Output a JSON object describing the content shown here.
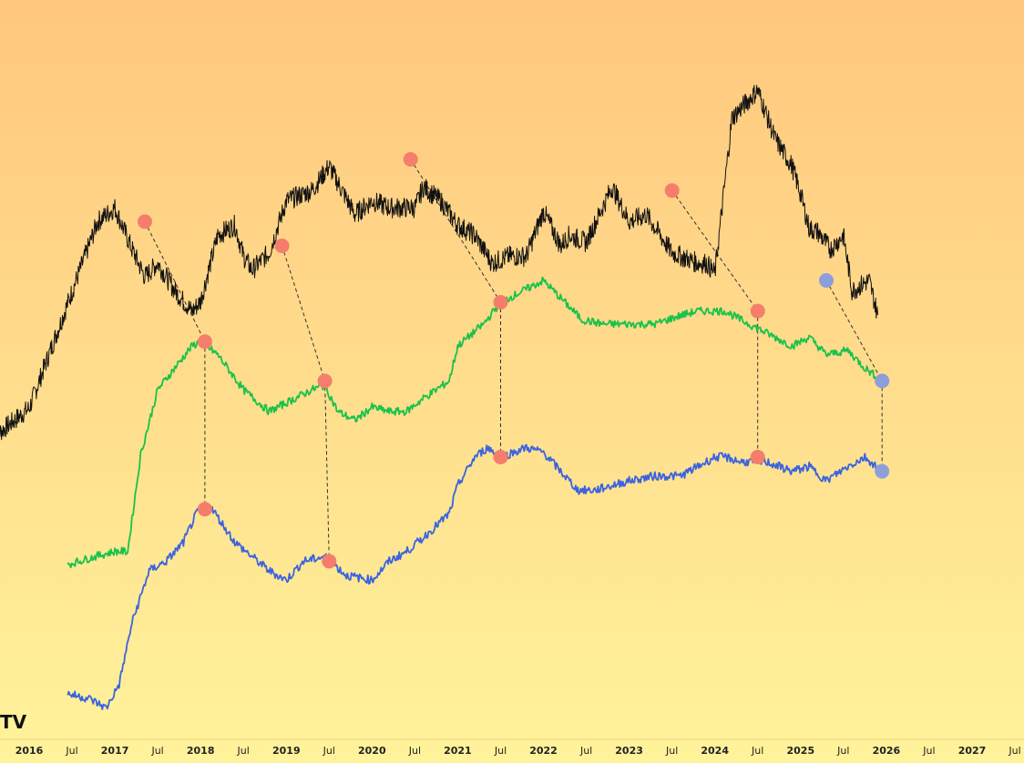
{
  "app": {
    "logo_text": "TV"
  },
  "colors": {
    "background_top": "#FFC77E",
    "background_bottom": "#FFF39B",
    "series_black": "#111111",
    "series_green": "#19C24A",
    "series_blue": "#3B63E0",
    "marker_peak": "#F47E6B",
    "marker_trough": "#8E9EDB",
    "divergence_line": "#333333",
    "axis_text": "#222222"
  },
  "chart_data": {
    "type": "line",
    "title": "",
    "xlabel": "",
    "ylabel": "",
    "grid": false,
    "x_axis_ticks": [
      "2016",
      "Jul",
      "2017",
      "Jul",
      "2018",
      "Jul",
      "2019",
      "Jul",
      "2020",
      "Jul",
      "2021",
      "Jul",
      "2022",
      "Jul",
      "2023",
      "Jul",
      "2024",
      "Jul",
      "2025",
      "Jul",
      "2026",
      "Jul",
      "2027",
      "Jul"
    ],
    "x_range": [
      2016.0,
      2027.5
    ],
    "series": [
      {
        "color": "black",
        "x": [
          2015.6,
          2016.0,
          2016.4,
          2016.8,
          2017.0,
          2017.2,
          2017.35,
          2017.5,
          2017.7,
          2017.9,
          2018.0,
          2018.2,
          2018.4,
          2018.5,
          2018.6,
          2018.8,
          2019.0,
          2019.3,
          2019.5,
          2019.8,
          2020.0,
          2020.2,
          2020.5,
          2020.6,
          2020.8,
          2021.0,
          2021.2,
          2021.4,
          2021.6,
          2021.8,
          2022.0,
          2022.2,
          2022.3,
          2022.5,
          2022.8,
          2023.0,
          2023.2,
          2023.5,
          2023.8,
          2023.9,
          2024.0,
          2024.2,
          2024.5,
          2024.7,
          2024.9,
          2025.0,
          2025.1,
          2025.2,
          2025.35,
          2025.5,
          2025.6,
          2025.8,
          2025.9
        ],
        "y": [
          0.2,
          0.28,
          0.55,
          0.82,
          0.86,
          0.74,
          0.66,
          0.7,
          0.62,
          0.56,
          0.59,
          0.78,
          0.81,
          0.72,
          0.68,
          0.73,
          0.88,
          0.91,
          0.98,
          0.84,
          0.88,
          0.86,
          0.86,
          0.92,
          0.88,
          0.81,
          0.78,
          0.7,
          0.72,
          0.72,
          0.85,
          0.75,
          0.78,
          0.76,
          0.92,
          0.82,
          0.84,
          0.73,
          0.7,
          0.7,
          0.67,
          1.12,
          1.2,
          1.06,
          0.98,
          0.9,
          0.8,
          0.79,
          0.74,
          0.78,
          0.62,
          0.65,
          0.55
        ]
      },
      {
        "color": "green",
        "x": [
          2016.45,
          2016.8,
          2017.0,
          2017.15,
          2017.3,
          2017.5,
          2017.7,
          2017.9,
          2018.0,
          2018.2,
          2018.5,
          2018.8,
          2019.0,
          2019.3,
          2019.45,
          2019.6,
          2019.8,
          2020.0,
          2020.2,
          2020.4,
          2020.6,
          2020.9,
          2021.0,
          2021.3,
          2021.5,
          2021.8,
          2022.0,
          2022.2,
          2022.45,
          2022.7,
          2023.0,
          2023.3,
          2023.6,
          2023.8,
          2024.0,
          2024.12,
          2024.3,
          2024.6,
          2024.9,
          2025.1,
          2025.3,
          2025.55,
          2025.75,
          2025.95
        ],
        "y": [
          0.0,
          0.02,
          0.03,
          0.03,
          0.25,
          0.4,
          0.45,
          0.5,
          0.51,
          0.48,
          0.4,
          0.35,
          0.37,
          0.4,
          0.41,
          0.35,
          0.33,
          0.36,
          0.35,
          0.35,
          0.38,
          0.42,
          0.5,
          0.55,
          0.6,
          0.63,
          0.65,
          0.61,
          0.56,
          0.55,
          0.55,
          0.55,
          0.57,
          0.58,
          0.58,
          0.58,
          0.56,
          0.53,
          0.5,
          0.52,
          0.48,
          0.49,
          0.45,
          0.42
        ]
      },
      {
        "color": "blue",
        "x": [
          2016.45,
          2016.7,
          2016.9,
          2017.05,
          2017.2,
          2017.4,
          2017.6,
          2017.8,
          2017.95,
          2018.1,
          2018.4,
          2018.8,
          2019.0,
          2019.2,
          2019.45,
          2019.7,
          2020.0,
          2020.2,
          2020.4,
          2020.6,
          2020.9,
          2021.0,
          2021.2,
          2021.35,
          2021.5,
          2021.8,
          2022.0,
          2022.2,
          2022.4,
          2022.6,
          2023.0,
          2023.3,
          2023.6,
          2023.8,
          2024.0,
          2024.12,
          2024.3,
          2024.6,
          2024.9,
          2025.1,
          2025.3,
          2025.55,
          2025.75,
          2025.95
        ],
        "y": [
          0.0,
          -0.01,
          -0.03,
          0.02,
          0.15,
          0.26,
          0.28,
          0.32,
          0.38,
          0.4,
          0.32,
          0.26,
          0.24,
          0.28,
          0.29,
          0.25,
          0.24,
          0.28,
          0.3,
          0.33,
          0.38,
          0.44,
          0.5,
          0.52,
          0.5,
          0.52,
          0.51,
          0.47,
          0.43,
          0.43,
          0.45,
          0.46,
          0.46,
          0.48,
          0.5,
          0.5,
          0.49,
          0.49,
          0.47,
          0.48,
          0.45,
          0.48,
          0.5,
          0.47
        ]
      }
    ],
    "markers": [
      {
        "series": "black",
        "kind": "peak",
        "x": 2017.35,
        "y": 0.82
      },
      {
        "series": "black",
        "kind": "peak",
        "x": 2018.95,
        "y": 0.75
      },
      {
        "series": "black",
        "kind": "peak",
        "x": 2020.45,
        "y": 1.0
      },
      {
        "series": "black",
        "kind": "peak",
        "x": 2023.5,
        "y": 0.91
      },
      {
        "series": "black",
        "kind": "trough",
        "x": 2025.3,
        "y": 0.65
      },
      {
        "series": "green",
        "kind": "peak",
        "x": 2018.05,
        "y": 0.51
      },
      {
        "series": "green",
        "kind": "peak",
        "x": 2019.45,
        "y": 0.42
      },
      {
        "series": "green",
        "kind": "peak",
        "x": 2021.5,
        "y": 0.6
      },
      {
        "series": "green",
        "kind": "peak",
        "x": 2024.5,
        "y": 0.58
      },
      {
        "series": "green",
        "kind": "trough",
        "x": 2025.95,
        "y": 0.42
      },
      {
        "series": "blue",
        "kind": "peak",
        "x": 2018.05,
        "y": 0.39
      },
      {
        "series": "blue",
        "kind": "peak",
        "x": 2019.5,
        "y": 0.28
      },
      {
        "series": "blue",
        "kind": "peak",
        "x": 2021.5,
        "y": 0.5
      },
      {
        "series": "blue",
        "kind": "peak",
        "x": 2024.5,
        "y": 0.5
      },
      {
        "series": "blue",
        "kind": "trough",
        "x": 2025.95,
        "y": 0.47
      }
    ]
  }
}
